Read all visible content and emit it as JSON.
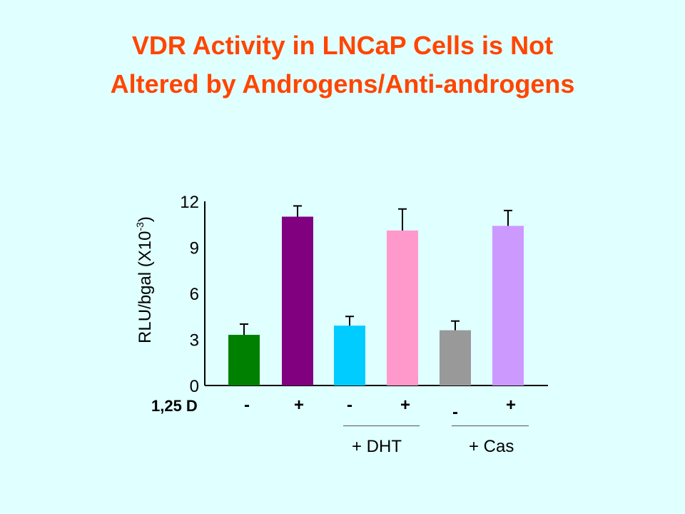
{
  "title_line1": "VDR Activity in LNCaP Cells is Not",
  "title_line2": "Altered by Androgens/Anti-androgens",
  "chart_data": {
    "type": "bar",
    "title": "VDR Activity in LNCaP Cells is Not Altered by Androgens/Anti-androgens",
    "ylabel_base": "RLU/bgal (X10",
    "ylabel_exp": "-3",
    "ylabel_close": ")",
    "ylim": [
      0,
      12
    ],
    "yticks": [
      "0",
      "3",
      "6",
      "9",
      "12"
    ],
    "row_label": "1,25 D",
    "conditions": [
      "-",
      "+",
      "-",
      "+",
      "-",
      "+"
    ],
    "values": [
      3.3,
      11.0,
      3.9,
      10.1,
      3.6,
      10.4
    ],
    "errors": [
      0.7,
      0.7,
      0.6,
      1.4,
      0.6,
      1.0
    ],
    "colors": [
      "#008000",
      "#800080",
      "#00ccff",
      "#ff99cc",
      "#999999",
      "#cc99ff"
    ],
    "groups": [
      {
        "label": "+ DHT",
        "bars": [
          2,
          3
        ]
      },
      {
        "label": "+ Cas",
        "bars": [
          4,
          5
        ]
      }
    ]
  }
}
